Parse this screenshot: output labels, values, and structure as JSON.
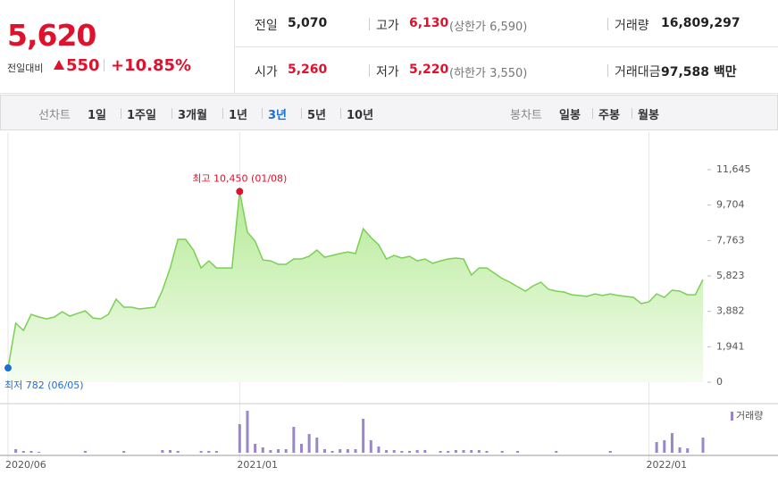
{
  "quote": {
    "price": "5,620",
    "change_label": "전일대비",
    "change": "550",
    "change_rate": "+10.85%"
  },
  "stats": [
    [
      {
        "label": "전일",
        "value": "5,070"
      },
      {
        "label": "고가",
        "value": "6,130",
        "note": "(상한가 6,590)"
      },
      {
        "label": "거래량",
        "value": "16,809,297"
      }
    ],
    [
      {
        "label": "시가",
        "value": "5,260"
      },
      {
        "label": "저가",
        "value": "5,220",
        "note": "(하한가 3,550)"
      },
      {
        "label": "거래대금",
        "value": "97,588 백만"
      }
    ]
  ],
  "line_tabs": {
    "label": "선차트",
    "items": [
      "1일",
      "1주일",
      "3개월",
      "1년",
      "3년",
      "5년",
      "10년"
    ],
    "selected": 4
  },
  "candle_tabs": {
    "label": "봉차트",
    "items": [
      "일봉",
      "주봉",
      "월봉"
    ]
  },
  "chart_data": [
    {
      "type": "area",
      "color": "#7bcf55",
      "values": [
        782,
        3230,
        2840,
        3720,
        3570,
        3470,
        3570,
        3860,
        3620,
        3770,
        3910,
        3520,
        3470,
        3720,
        4550,
        4110,
        4110,
        4010,
        4060,
        4110,
        5040,
        6260,
        7830,
        7830,
        7240,
        6260,
        6650,
        6260,
        6260,
        6260,
        10450,
        8220,
        7730,
        6700,
        6650,
        6460,
        6460,
        6750,
        6750,
        6900,
        7240,
        6850,
        6950,
        7050,
        7140,
        7050,
        8410,
        7930,
        7530,
        6750,
        6950,
        6800,
        6900,
        6650,
        6750,
        6510,
        6650,
        6750,
        6800,
        6750,
        5870,
        6260,
        6260,
        5970,
        5680,
        5480,
        5230,
        4990,
        5280,
        5480,
        5090,
        4990,
        4940,
        4790,
        4750,
        4700,
        4840,
        4750,
        4840,
        4750,
        4700,
        4650,
        4310,
        4400,
        4840,
        4650,
        5040,
        4990,
        4790,
        4790,
        5620
      ],
      "ylim": [
        0,
        11645
      ],
      "yticks": [
        {
          "value": 11645,
          "label": "11,645"
        },
        {
          "value": 9704,
          "label": "9,704"
        },
        {
          "value": 7763,
          "label": "7,763"
        },
        {
          "value": 5823,
          "label": "5,823"
        },
        {
          "value": 3882,
          "label": "3,882"
        },
        {
          "value": 1941,
          "label": "1,941"
        },
        0
      ],
      "annotations": {
        "high": {
          "text": "최고 10,450 (01/08)",
          "color": "#e0112c"
        },
        "low": {
          "text": "최저 782 (06/05)",
          "color": "#1f6fd1"
        }
      }
    },
    {
      "type": "bar",
      "categories": [
        "2020/06",
        null,
        null,
        null,
        null,
        null,
        null,
        null,
        null,
        null,
        null,
        null,
        null,
        null,
        null,
        null,
        null,
        null,
        null,
        null,
        null,
        null,
        null,
        null,
        null,
        null,
        null,
        null,
        null,
        null,
        "2021/01",
        null,
        null,
        null,
        null,
        null,
        null,
        null,
        null,
        null,
        null,
        null,
        null,
        null,
        null,
        null,
        null,
        null,
        null,
        null,
        null,
        null,
        null,
        null,
        null,
        null,
        null,
        null,
        null,
        null,
        null,
        null,
        null,
        null,
        null,
        null,
        null,
        null,
        null,
        null,
        null,
        null,
        null,
        null,
        null,
        null,
        null,
        null,
        null,
        null,
        null,
        null,
        null,
        "2022/01",
        null,
        null,
        null,
        null,
        null,
        null,
        null
      ],
      "series": [
        {
          "name": "거래량",
          "color": "#9b86c9",
          "values": [
            0,
            4,
            2,
            2,
            1,
            0,
            0,
            0,
            0,
            0,
            2,
            0,
            0,
            0,
            0,
            2,
            0,
            0,
            0,
            0,
            3,
            3,
            2,
            0,
            0,
            2,
            2,
            2,
            0,
            0,
            32,
            47,
            10,
            6,
            3,
            4,
            4,
            29,
            10,
            21,
            17,
            4,
            2,
            4,
            4,
            4,
            38,
            14,
            7,
            3,
            3,
            2,
            2,
            3,
            3,
            0,
            2,
            2,
            3,
            3,
            3,
            3,
            2,
            0,
            2,
            0,
            2,
            0,
            0,
            0,
            0,
            2,
            0,
            0,
            0,
            0,
            0,
            0,
            2,
            0,
            0,
            0,
            0,
            0,
            12,
            14,
            22,
            6,
            5,
            0,
            17
          ]
        }
      ]
    }
  ]
}
